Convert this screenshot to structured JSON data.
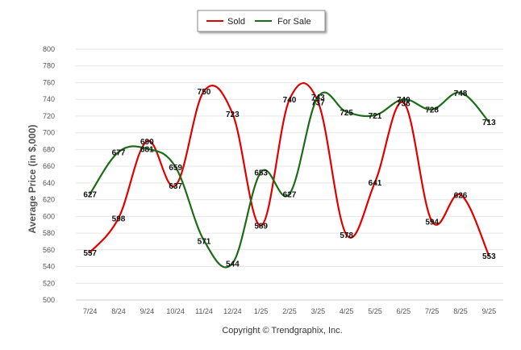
{
  "chart_data": {
    "type": "line",
    "title": "",
    "xlabel": "",
    "ylabel": "Average Price (in $,000)",
    "ylim": [
      500,
      800
    ],
    "ytick_step": 20,
    "grid": true,
    "legend_position": "top-center",
    "categories": [
      "7/24",
      "8/24",
      "9/24",
      "10/24",
      "11/24",
      "12/24",
      "1/25",
      "2/25",
      "3/25",
      "4/25",
      "5/25",
      "6/25",
      "7/25",
      "8/25",
      "9/25"
    ],
    "series": [
      {
        "name": "Sold",
        "color": "#e00000",
        "values": [
          557,
          598,
          690,
          637,
          750,
          723,
          589,
          740,
          737,
          578,
          641,
          736,
          594,
          626,
          553
        ]
      },
      {
        "name": "For Sale",
        "color": "#1c6b16",
        "values": [
          627,
          677,
          681,
          659,
          571,
          544,
          653,
          627,
          743,
          725,
          721,
          740,
          728,
          748,
          713
        ]
      }
    ],
    "footer": "Copyright © Trendgraphix, Inc."
  }
}
